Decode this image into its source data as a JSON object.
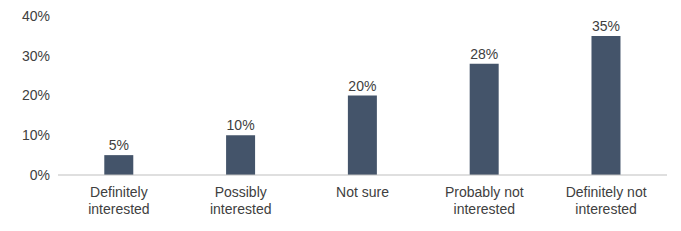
{
  "chart_data": {
    "type": "bar",
    "categories": [
      "Definitely interested",
      "Possibly interested",
      "Not sure",
      "Probably not interested",
      "Definitely not interested"
    ],
    "values": [
      5,
      10,
      20,
      28,
      35
    ],
    "value_labels": [
      "5%",
      "10%",
      "20%",
      "28%",
      "35%"
    ],
    "data_labels": true,
    "color": "#44546a",
    "ylim": [
      0,
      40
    ],
    "yticks": [
      {
        "value": 0,
        "label": "0%"
      },
      {
        "value": 10,
        "label": "10%"
      },
      {
        "value": 20,
        "label": "20%"
      },
      {
        "value": 30,
        "label": "30%"
      },
      {
        "value": 40,
        "label": "40%"
      }
    ],
    "grid": false
  }
}
